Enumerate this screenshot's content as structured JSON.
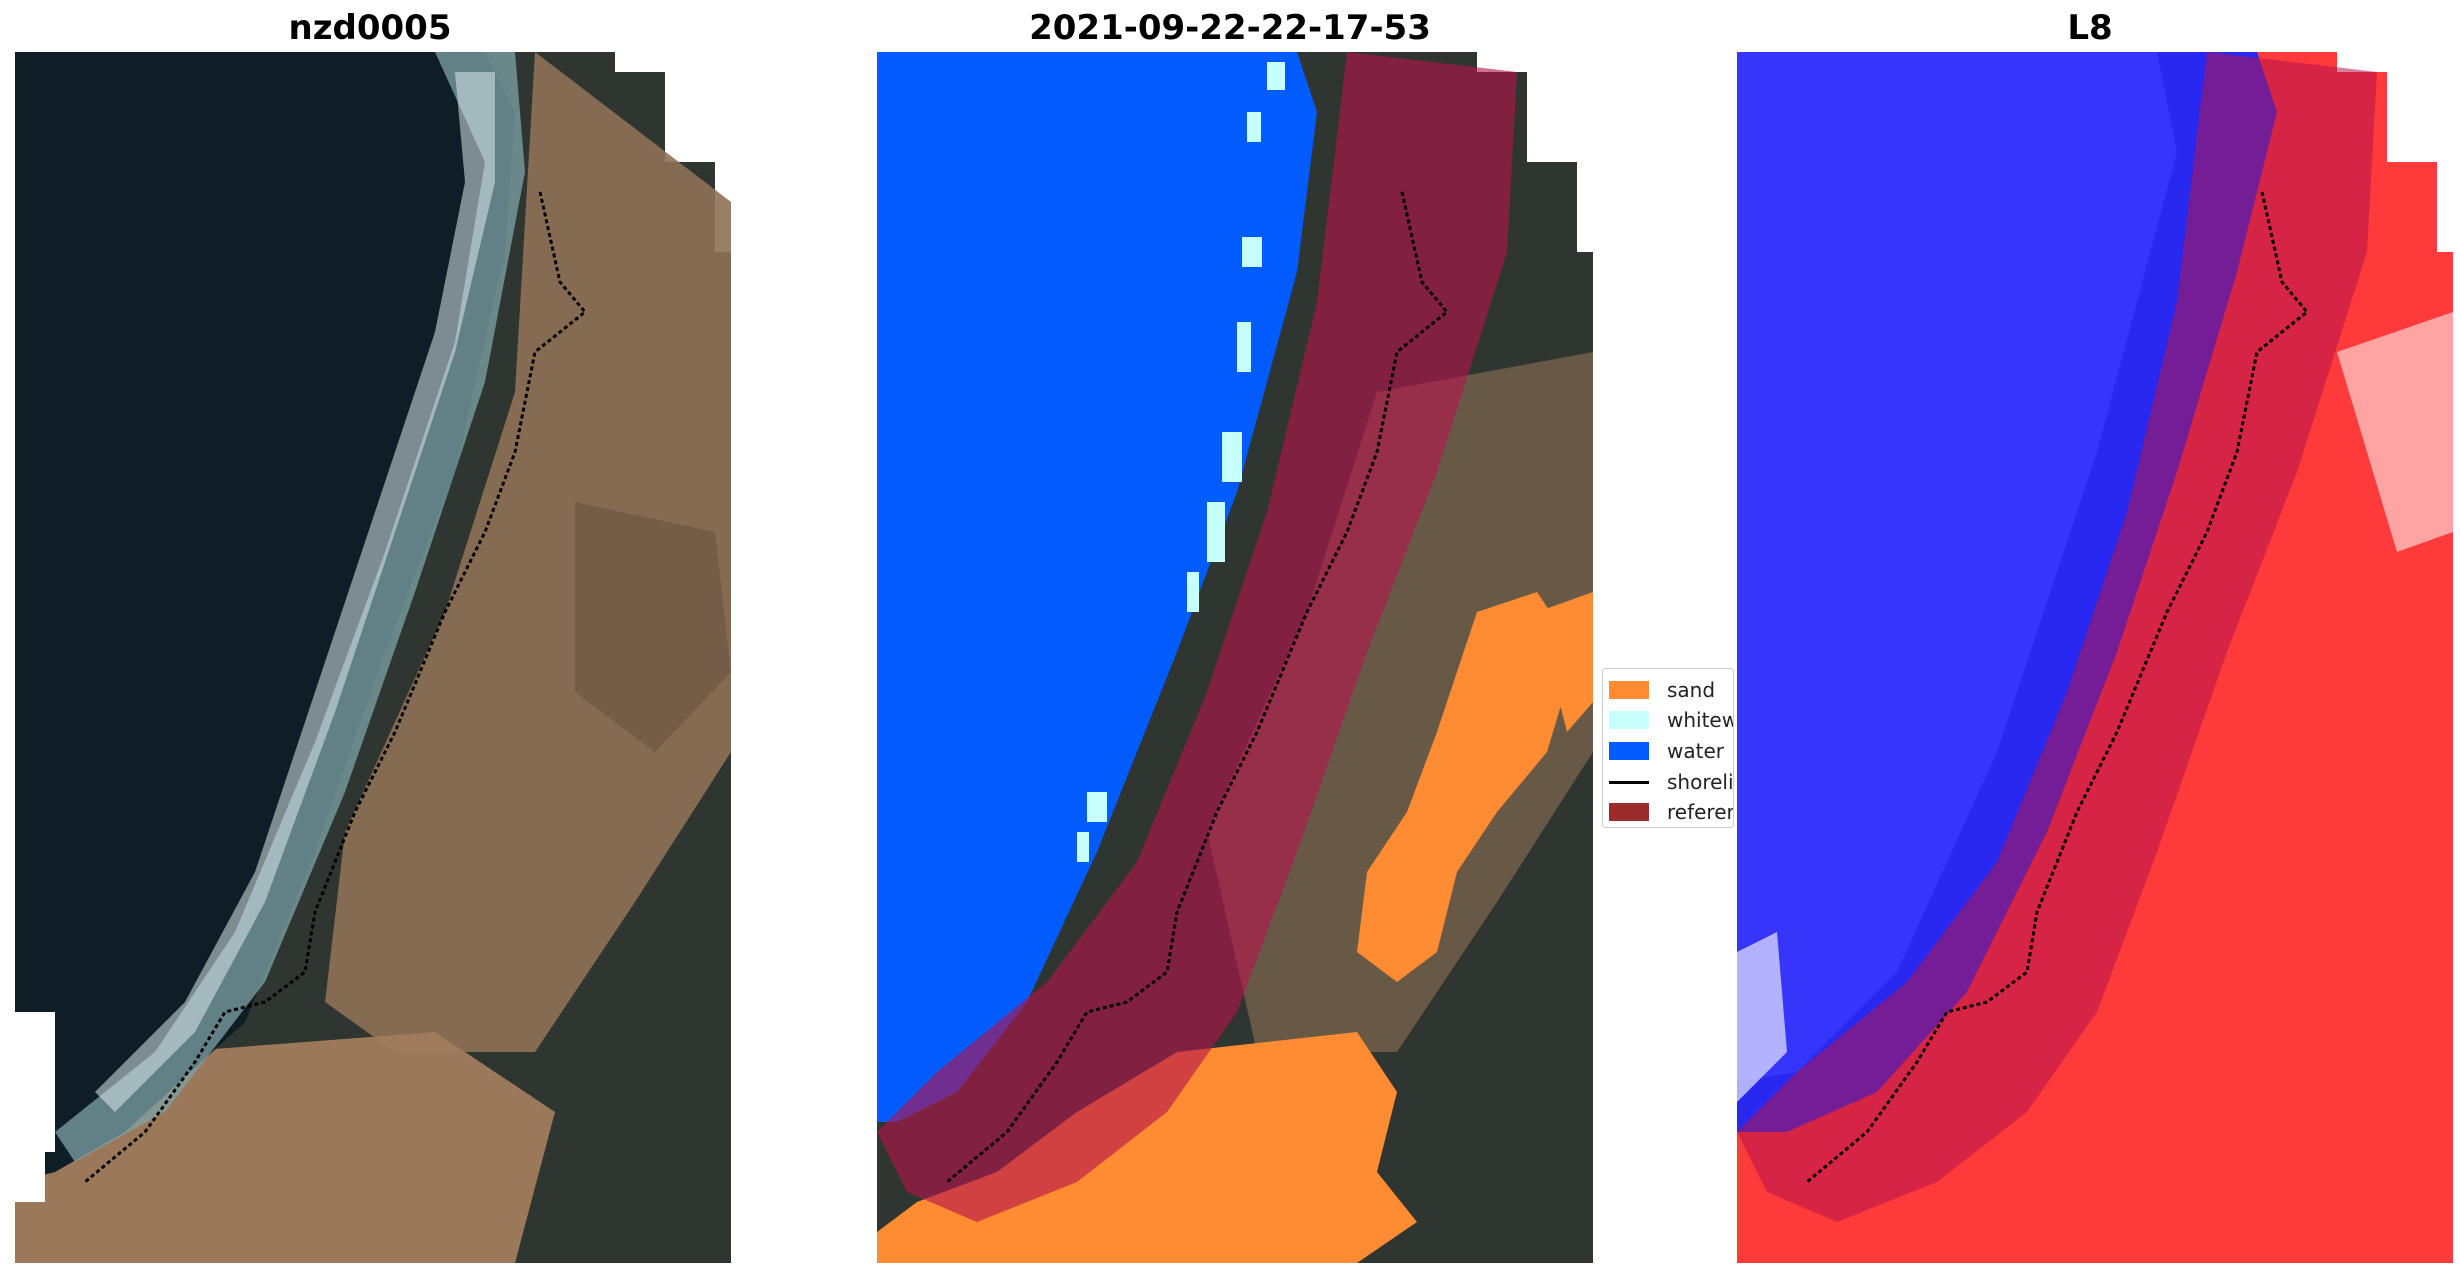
{
  "panels": [
    {
      "title": "nzd0005"
    },
    {
      "title": "2021-09-22-22-17-53"
    },
    {
      "title": "L8"
    }
  ],
  "legend": {
    "items": [
      {
        "label": "sand",
        "color": "#ff8c33"
      },
      {
        "label": "whitewater",
        "color": "#c6fffc"
      },
      {
        "label": "water",
        "color": "#005cff"
      },
      {
        "label": "shoreline",
        "color": "#000000"
      },
      {
        "label": "reference shoreline buffer",
        "color": "#9b2b2b"
      }
    ]
  },
  "colors": {
    "sea_dark": "#0f1d26",
    "land_dark": "#2f3530",
    "land_tan": "#96785a",
    "buffer": "#b4144c",
    "index_blue": "#2828ff",
    "index_red": "#ff3030"
  }
}
